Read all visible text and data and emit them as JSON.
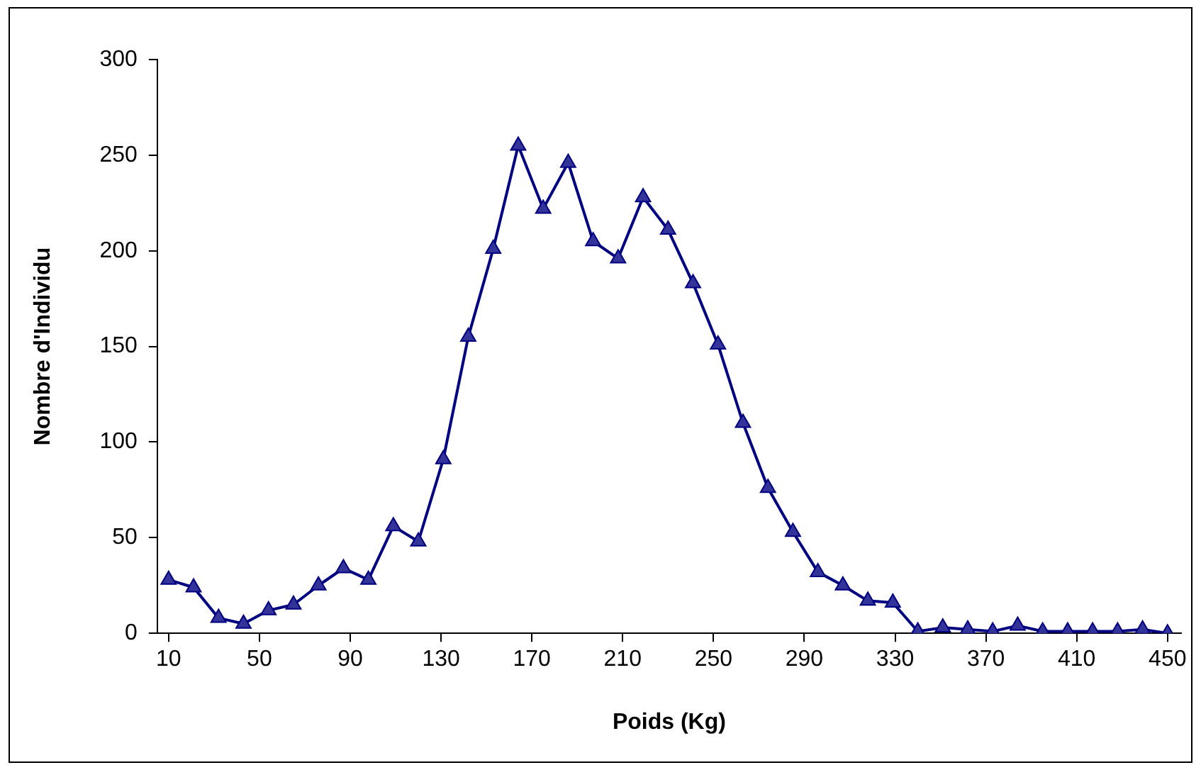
{
  "chart_data": {
    "type": "line",
    "xlabel": "Poids (Kg)",
    "ylabel": "Nombre d'Individu",
    "x": [
      10,
      21,
      32,
      43,
      54,
      65,
      76,
      87,
      98,
      109,
      120,
      131,
      142,
      153,
      164,
      175,
      186,
      197,
      208,
      219,
      230,
      241,
      252,
      263,
      274,
      285,
      296,
      307,
      318,
      329,
      340,
      351,
      362,
      373,
      384,
      395,
      406,
      417,
      428,
      439,
      450
    ],
    "series": [
      {
        "color": "#000080",
        "values": [
          28,
          24,
          8,
          5,
          12,
          15,
          25,
          34,
          28,
          56,
          48,
          91,
          155,
          201,
          255,
          222,
          246,
          205,
          196,
          228,
          211,
          183,
          151,
          110,
          76,
          53,
          32,
          25,
          17,
          16,
          1,
          3,
          2,
          1,
          4,
          1,
          1,
          1,
          1,
          2,
          0
        ]
      }
    ],
    "xlim": [
      5,
      456
    ],
    "xticks": [
      10,
      50,
      90,
      130,
      170,
      210,
      250,
      290,
      330,
      370,
      410,
      450
    ],
    "ylim": [
      0,
      300
    ],
    "yticks": [
      0,
      50,
      100,
      150,
      200,
      250,
      300
    ],
    "grid": false,
    "legend": false,
    "marker": "triangle",
    "line_style": "solid"
  }
}
